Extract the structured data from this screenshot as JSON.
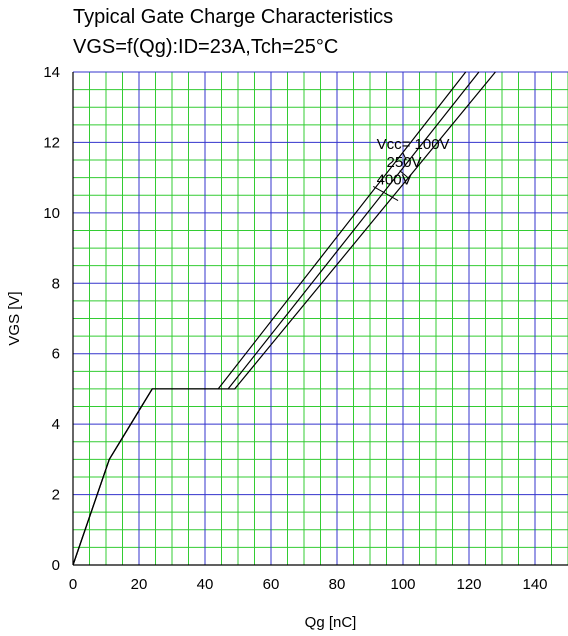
{
  "chart_data": {
    "type": "line",
    "title": "Typical Gate Charge Characteristics",
    "subtitle": "VGS=f(Qg):ID=23A,Tch=25°C",
    "xlabel": "Qg [nC]",
    "ylabel": "VGS [V]",
    "xlim": [
      0,
      150
    ],
    "ylim": [
      0,
      14
    ],
    "x_ticks": [
      "0",
      "20",
      "40",
      "60",
      "80",
      "100",
      "120",
      "140"
    ],
    "y_ticks": [
      "0",
      "2",
      "4",
      "6",
      "8",
      "10",
      "12",
      "14"
    ],
    "grid": true,
    "grid_minor_step_x": 5,
    "grid_major_step_x": 20,
    "grid_minor_step_y": 0.5,
    "grid_major_step_y": 2,
    "colors": {
      "minor_grid": "#33cc33",
      "major_grid": "#3333cc",
      "line": "#000000",
      "axis": "#000000"
    },
    "series": [
      {
        "name": "Vcc= 100V",
        "points": [
          [
            0,
            0
          ],
          [
            11,
            3
          ],
          [
            24,
            5
          ],
          [
            44,
            5
          ],
          [
            119,
            14
          ]
        ]
      },
      {
        "name": "250V",
        "points": [
          [
            0,
            0
          ],
          [
            11,
            3
          ],
          [
            24,
            5
          ],
          [
            47,
            5
          ],
          [
            123,
            14
          ]
        ]
      },
      {
        "name": "400V",
        "points": [
          [
            0,
            0
          ],
          [
            11,
            3
          ],
          [
            24,
            5
          ],
          [
            49,
            5
          ],
          [
            128,
            14
          ]
        ]
      }
    ],
    "annotations": [
      {
        "text": "Vcc= 100V",
        "x": 92,
        "y": 11.95,
        "anchor": "start",
        "leader": [
          [
            101,
            11.5
          ],
          [
            100,
            11.7
          ]
        ]
      },
      {
        "text": "250V",
        "x": 95,
        "y": 11.45,
        "anchor": "start",
        "leader": [
          [
            101.5,
            11.0
          ],
          [
            99,
            11.2
          ]
        ]
      },
      {
        "text": "400V",
        "x": 92,
        "y": 10.95,
        "anchor": "start",
        "leader": [
          [
            98.5,
            10.35
          ],
          [
            91,
            10.75
          ]
        ]
      }
    ]
  }
}
